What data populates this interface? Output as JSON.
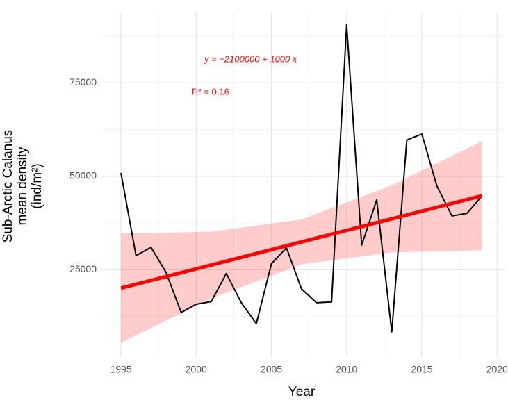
{
  "chart_data": {
    "type": "line",
    "x_label": "Year",
    "y_label": [
      "Sub-Arctic Calanus",
      "mean density",
      "(ind/m²)"
    ],
    "annotations": [
      "y = −2100000 + 1000 x",
      "R² = 0.16"
    ],
    "annotation_color": "#ff0000",
    "x": [
      1995,
      1996,
      1997,
      1998,
      1999,
      2000,
      2001,
      2002,
      2003,
      2004,
      2005,
      2006,
      2007,
      2008,
      2009,
      2010,
      2011,
      2012,
      2013,
      2014,
      2015,
      2016,
      2017,
      2018,
      2019
    ],
    "series": [
      {
        "color": "#000000",
        "values": [
          50900,
          28800,
          31000,
          24300,
          13600,
          15800,
          16500,
          24000,
          16200,
          10600,
          26600,
          30900,
          19900,
          16200,
          16400,
          90500,
          31600,
          43700,
          8400,
          59700,
          61300,
          47400,
          39400,
          40100,
          44800
        ]
      }
    ],
    "trend": {
      "color": "#ff0000",
      "x": [
        1995,
        2019
      ],
      "values": [
        20100,
        44800
      ]
    },
    "ribbon": {
      "color": "#ff0000",
      "x": [
        1995,
        2001,
        2007,
        2013,
        2019
      ],
      "upper": [
        34700,
        35200,
        38450,
        47600,
        59400
      ],
      "lower": [
        5500,
        17300,
        26450,
        29650,
        30200
      ]
    },
    "xlim": [
      1993.75,
      2020.45
    ],
    "ylim": [
      1500,
      93800
    ],
    "xticks": [
      1995,
      2000,
      2005,
      2010,
      2015,
      2020
    ],
    "yticks": [
      25000,
      50000,
      75000
    ],
    "xminor": [
      1997.5,
      2002.5,
      2007.5,
      2012.5,
      2017.5
    ],
    "yminor": [
      12500,
      37500,
      62500,
      87500
    ],
    "grid": true
  }
}
